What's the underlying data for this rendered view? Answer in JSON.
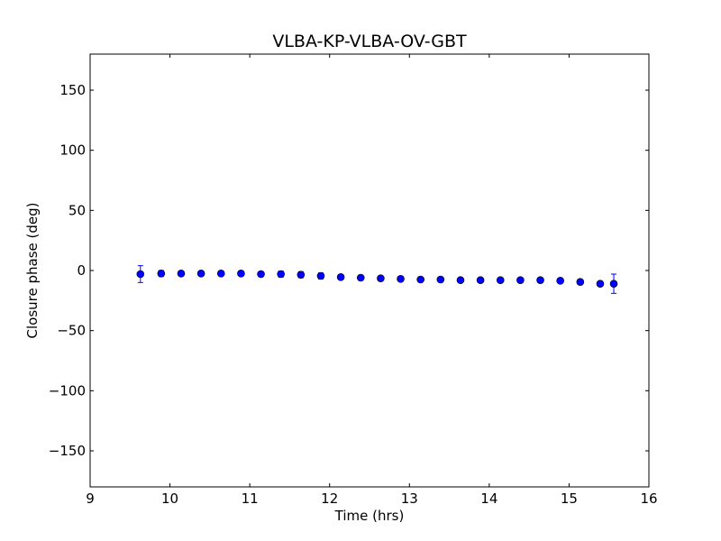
{
  "chart_data": {
    "type": "scatter",
    "title": "VLBA-KP-VLBA-OV-GBT",
    "xlabel": "Time (hrs)",
    "ylabel": "Closure phase (deg)",
    "xlim": [
      9,
      16
    ],
    "ylim": [
      -180,
      180
    ],
    "xticks": [
      9,
      10,
      11,
      12,
      13,
      14,
      15,
      16
    ],
    "xtick_labels": [
      "9",
      "10",
      "11",
      "12",
      "13",
      "14",
      "15",
      "16"
    ],
    "yticks": [
      150,
      100,
      50,
      0,
      -50,
      -100,
      -150
    ],
    "ytick_labels": [
      "150",
      "100",
      "50",
      "0",
      "−50",
      "−100",
      "−150"
    ],
    "grid": false,
    "legend": "none",
    "marker_color": "#0000ff",
    "errorbar_color": "#0000ff",
    "series": [
      {
        "x": [
          9.63,
          9.89,
          10.14,
          10.39,
          10.64,
          10.89,
          11.14,
          11.39,
          11.64,
          11.89,
          12.14,
          12.39,
          12.64,
          12.89,
          13.14,
          13.39,
          13.64,
          13.89,
          14.14,
          14.39,
          14.64,
          14.89,
          15.14,
          15.39,
          15.56
        ],
        "y": [
          -3,
          -2.5,
          -2.5,
          -2.5,
          -2.5,
          -2.5,
          -3,
          -3,
          -3.5,
          -4.5,
          -5.5,
          -6,
          -6.5,
          -7,
          -7.5,
          -7.5,
          -8,
          -8,
          -8,
          -8,
          -8,
          -8.5,
          -9.5,
          -11,
          -11
        ],
        "yerr": [
          7,
          2.5,
          2,
          2,
          2,
          2,
          2,
          2.5,
          2.5,
          2.5,
          2,
          2,
          2,
          2,
          2,
          2,
          2,
          2,
          2,
          2,
          2,
          2,
          2,
          2,
          8
        ]
      }
    ]
  }
}
